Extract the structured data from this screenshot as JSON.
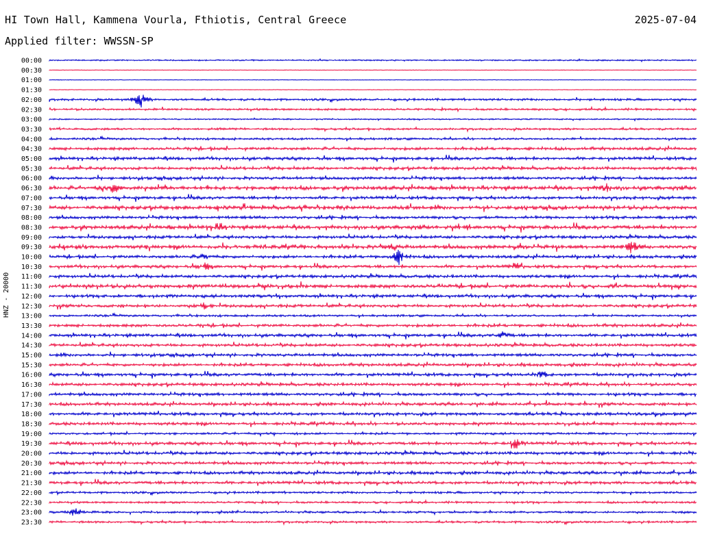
{
  "header": {
    "station": "HI Town Hall, Kammena Vourla, Fthiotis, Central Greece",
    "date": "2025-07-04",
    "filter": "Applied filter: WWSSN-SP"
  },
  "chart_data": {
    "type": "line",
    "channel_label": "HNZ - 20000",
    "colors": [
      "#0000cc",
      "#ee1144"
    ],
    "rows": [
      "00:00",
      "00:30",
      "01:00",
      "01:30",
      "02:00",
      "02:30",
      "03:00",
      "03:30",
      "04:00",
      "04:30",
      "05:00",
      "05:30",
      "06:00",
      "06:30",
      "07:00",
      "07:30",
      "08:00",
      "08:30",
      "09:00",
      "09:30",
      "10:00",
      "10:30",
      "11:00",
      "11:30",
      "12:00",
      "12:30",
      "13:00",
      "13:30",
      "14:00",
      "14:30",
      "15:00",
      "15:30",
      "16:00",
      "16:30",
      "17:00",
      "17:30",
      "18:00",
      "18:30",
      "19:00",
      "19:30",
      "20:00",
      "20:30",
      "21:00",
      "21:30",
      "22:00",
      "22:30",
      "23:00",
      "23:30"
    ],
    "noise_level": [
      1,
      0,
      0,
      0,
      2,
      2,
      1,
      2,
      2,
      3,
      3,
      3,
      3,
      4,
      3,
      4,
      3,
      4,
      3,
      4,
      3,
      3,
      3,
      4,
      3,
      3,
      2,
      3,
      3,
      3,
      3,
      3,
      3,
      3,
      3,
      3,
      3,
      3,
      2,
      3,
      3,
      3,
      3,
      3,
      2,
      2,
      2,
      2
    ],
    "events": [
      {
        "row": 4,
        "x": 0.14,
        "amp": 14
      },
      {
        "row": 13,
        "x": 0.1,
        "amp": 8
      },
      {
        "row": 13,
        "x": 0.86,
        "amp": 6
      },
      {
        "row": 17,
        "x": 0.26,
        "amp": 6
      },
      {
        "row": 19,
        "x": 0.9,
        "amp": 11
      },
      {
        "row": 19,
        "x": 0.53,
        "amp": 5
      },
      {
        "row": 20,
        "x": 0.54,
        "amp": 12
      },
      {
        "row": 20,
        "x": 0.24,
        "amp": 5
      },
      {
        "row": 21,
        "x": 0.24,
        "amp": 5
      },
      {
        "row": 21,
        "x": 0.72,
        "amp": 5
      },
      {
        "row": 25,
        "x": 0.24,
        "amp": 6
      },
      {
        "row": 28,
        "x": 0.7,
        "amp": 5
      },
      {
        "row": 32,
        "x": 0.76,
        "amp": 6
      },
      {
        "row": 39,
        "x": 0.72,
        "amp": 9
      },
      {
        "row": 46,
        "x": 0.04,
        "amp": 7
      }
    ]
  }
}
